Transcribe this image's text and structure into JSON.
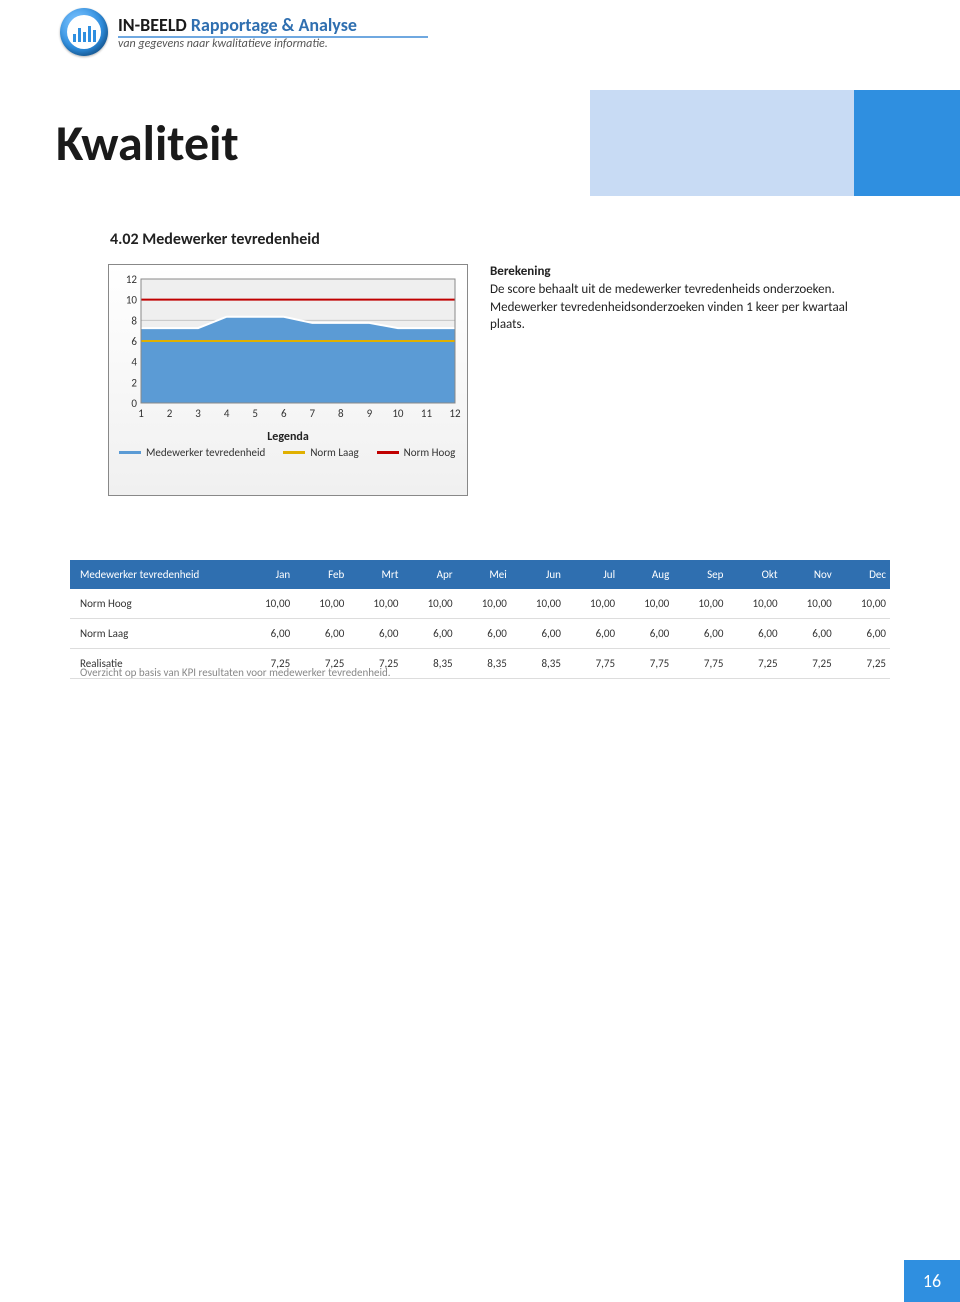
{
  "brand": {
    "bold": "IN-BEELD",
    "accent_rest": " Rapportage & Analyse",
    "tagline": "van gegevens naar kwalitatieve informatie."
  },
  "page_title": "Kwaliteit",
  "section_title": "4.02 Medewerker tevredenheid",
  "description": {
    "heading": "Berekening",
    "body": "De score behaalt uit de medewerker tevredenheids onderzoeken. Medewerker tevredenheidsonderzoeken vinden 1 keer per kwartaal plaats."
  },
  "chart": {
    "type": "area",
    "ylim": [
      0,
      12
    ],
    "ytick_step": 2,
    "xlim": [
      1,
      12
    ],
    "xtick_step": 1,
    "plot_background": "#efefef",
    "grid_color": "#bfbfbf",
    "border_color": "#888888",
    "font_size": 11,
    "series": [
      {
        "name": "Medewerker tevredenheid",
        "data": [
          7.25,
          7.25,
          7.25,
          8.35,
          8.35,
          8.35,
          7.75,
          7.75,
          7.75,
          7.25,
          7.25,
          7.25
        ],
        "stroke": "#ffffff",
        "stroke_width": 2,
        "fill": "#5b9bd5",
        "fill_opacity": 1
      },
      {
        "name": "Norm Hoog",
        "data": [
          10,
          10,
          10,
          10,
          10,
          10,
          10,
          10,
          10,
          10,
          10,
          10
        ],
        "stroke": "#c00000",
        "stroke_width": 2,
        "fill": "none"
      },
      {
        "name": "Norm Laag",
        "data": [
          6,
          6,
          6,
          6,
          6,
          6,
          6,
          6,
          6,
          6,
          6,
          6
        ],
        "stroke": "#e0b000",
        "stroke_width": 2,
        "fill": "none"
      }
    ],
    "legend": {
      "title": "Legenda",
      "items": [
        {
          "label": "Medewerker tevredenheid",
          "color": "#5b9bd5"
        },
        {
          "label": "Norm Laag",
          "color": "#e0b000"
        },
        {
          "label": "Norm Hoog",
          "color": "#c00000"
        }
      ]
    }
  },
  "table": {
    "columns": [
      "Medewerker tevredenheid",
      "Jan",
      "Feb",
      "Mrt",
      "Apr",
      "Mei",
      "Jun",
      "Jul",
      "Aug",
      "Sep",
      "Okt",
      "Nov",
      "Dec"
    ],
    "rows": [
      [
        "Norm Hoog",
        "10,00",
        "10,00",
        "10,00",
        "10,00",
        "10,00",
        "10,00",
        "10,00",
        "10,00",
        "10,00",
        "10,00",
        "10,00",
        "10,00"
      ],
      [
        "Norm Laag",
        "6,00",
        "6,00",
        "6,00",
        "6,00",
        "6,00",
        "6,00",
        "6,00",
        "6,00",
        "6,00",
        "6,00",
        "6,00",
        "6,00"
      ],
      [
        "Realisatie",
        "7,25",
        "7,25",
        "7,25",
        "8,35",
        "8,35",
        "8,35",
        "7,75",
        "7,75",
        "7,75",
        "7,25",
        "7,25",
        "7,25"
      ]
    ],
    "note": "Overzicht op basis van KPI resultaten voor medewerker tevredenheid."
  },
  "page_number": "16",
  "colors": {
    "header_blue": "#2f6fb0",
    "accent_blue": "#2f8fe0",
    "light_blue": "#c8dbf4"
  }
}
